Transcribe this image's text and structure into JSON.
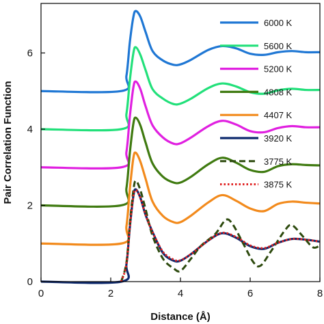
{
  "chart_data": {
    "type": "line",
    "title": "",
    "xlabel": "Distance (Å)",
    "ylabel": "Pair Correlation Function",
    "xlim": [
      0,
      8
    ],
    "ylim": [
      0,
      7.3
    ],
    "x_ticks": [
      0,
      2,
      4,
      6,
      8
    ],
    "y_ticks": [
      0,
      2,
      4,
      6
    ],
    "grid": false,
    "legend_position": "right",
    "series": [
      {
        "name": "6000 K",
        "color": "#1f77d4",
        "style": "solid",
        "offset": 5,
        "points": [
          [
            0,
            0
          ],
          [
            2.3,
            0
          ],
          [
            2.45,
            0.4
          ],
          [
            2.55,
            1.3
          ],
          [
            2.65,
            1.95
          ],
          [
            2.72,
            2.1
          ],
          [
            2.85,
            1.95
          ],
          [
            3.0,
            1.55
          ],
          [
            3.2,
            1.05
          ],
          [
            3.5,
            0.8
          ],
          [
            3.8,
            0.69
          ],
          [
            4.0,
            0.7
          ],
          [
            4.3,
            0.82
          ],
          [
            4.8,
            1.08
          ],
          [
            5.2,
            1.18
          ],
          [
            5.6,
            1.12
          ],
          [
            6.0,
            0.98
          ],
          [
            6.4,
            0.95
          ],
          [
            6.8,
            1.02
          ],
          [
            7.2,
            1.05
          ],
          [
            7.6,
            1.02
          ],
          [
            8.0,
            1.02
          ]
        ]
      },
      {
        "name": "5600 K",
        "color": "#22e07a",
        "style": "solid",
        "offset": 4,
        "points": [
          [
            0,
            0
          ],
          [
            2.3,
            0
          ],
          [
            2.45,
            0.4
          ],
          [
            2.55,
            1.3
          ],
          [
            2.65,
            2.0
          ],
          [
            2.72,
            2.15
          ],
          [
            2.85,
            1.95
          ],
          [
            3.0,
            1.55
          ],
          [
            3.2,
            1.05
          ],
          [
            3.5,
            0.8
          ],
          [
            3.8,
            0.66
          ],
          [
            4.0,
            0.67
          ],
          [
            4.3,
            0.8
          ],
          [
            4.8,
            1.08
          ],
          [
            5.2,
            1.2
          ],
          [
            5.6,
            1.12
          ],
          [
            6.0,
            0.97
          ],
          [
            6.4,
            0.93
          ],
          [
            6.8,
            1.02
          ],
          [
            7.2,
            1.06
          ],
          [
            7.6,
            1.03
          ],
          [
            8.0,
            1.03
          ]
        ]
      },
      {
        "name": "5200 K",
        "color": "#e020e0",
        "style": "solid",
        "offset": 3,
        "points": [
          [
            0,
            0
          ],
          [
            2.3,
            0
          ],
          [
            2.45,
            0.4
          ],
          [
            2.55,
            1.35
          ],
          [
            2.65,
            2.1
          ],
          [
            2.72,
            2.25
          ],
          [
            2.85,
            2.05
          ],
          [
            3.0,
            1.6
          ],
          [
            3.2,
            1.1
          ],
          [
            3.5,
            0.78
          ],
          [
            3.8,
            0.62
          ],
          [
            4.0,
            0.63
          ],
          [
            4.3,
            0.78
          ],
          [
            4.8,
            1.08
          ],
          [
            5.2,
            1.22
          ],
          [
            5.6,
            1.12
          ],
          [
            6.0,
            0.95
          ],
          [
            6.4,
            0.92
          ],
          [
            6.8,
            1.03
          ],
          [
            7.2,
            1.08
          ],
          [
            7.6,
            1.05
          ],
          [
            8.0,
            1.05
          ]
        ]
      },
      {
        "name": "4808 K",
        "color": "#3f7a10",
        "style": "solid",
        "offset": 2,
        "points": [
          [
            0,
            0
          ],
          [
            2.3,
            0
          ],
          [
            2.45,
            0.45
          ],
          [
            2.55,
            1.4
          ],
          [
            2.65,
            2.15
          ],
          [
            2.72,
            2.3
          ],
          [
            2.85,
            2.1
          ],
          [
            3.0,
            1.65
          ],
          [
            3.2,
            1.1
          ],
          [
            3.5,
            0.75
          ],
          [
            3.8,
            0.6
          ],
          [
            4.0,
            0.6
          ],
          [
            4.3,
            0.75
          ],
          [
            4.8,
            1.08
          ],
          [
            5.2,
            1.25
          ],
          [
            5.6,
            1.12
          ],
          [
            6.0,
            0.93
          ],
          [
            6.4,
            0.88
          ],
          [
            6.8,
            1.03
          ],
          [
            7.2,
            1.08
          ],
          [
            7.6,
            1.06
          ],
          [
            8.0,
            1.05
          ]
        ]
      },
      {
        "name": "4407 K",
        "color": "#f28a1c",
        "style": "solid",
        "offset": 1,
        "points": [
          [
            0,
            0
          ],
          [
            2.3,
            0
          ],
          [
            2.45,
            0.45
          ],
          [
            2.55,
            1.45
          ],
          [
            2.65,
            2.25
          ],
          [
            2.72,
            2.38
          ],
          [
            2.85,
            2.15
          ],
          [
            3.0,
            1.7
          ],
          [
            3.2,
            1.1
          ],
          [
            3.5,
            0.72
          ],
          [
            3.8,
            0.56
          ],
          [
            4.0,
            0.56
          ],
          [
            4.3,
            0.73
          ],
          [
            4.8,
            1.08
          ],
          [
            5.2,
            1.27
          ],
          [
            5.6,
            1.12
          ],
          [
            6.0,
            0.92
          ],
          [
            6.4,
            0.85
          ],
          [
            6.8,
            1.04
          ],
          [
            7.2,
            1.1
          ],
          [
            7.6,
            1.07
          ],
          [
            8.0,
            1.05
          ]
        ]
      },
      {
        "name": "3920 K",
        "color": "#0e2a6e",
        "style": "solid",
        "offset": 0,
        "points": [
          [
            0,
            0
          ],
          [
            2.3,
            0
          ],
          [
            2.45,
            0.45
          ],
          [
            2.55,
            1.45
          ],
          [
            2.65,
            2.25
          ],
          [
            2.72,
            2.42
          ],
          [
            2.85,
            2.2
          ],
          [
            3.0,
            1.75
          ],
          [
            3.2,
            1.3
          ],
          [
            3.5,
            0.75
          ],
          [
            3.8,
            0.55
          ],
          [
            4.0,
            0.55
          ],
          [
            4.3,
            0.72
          ],
          [
            4.8,
            1.08
          ],
          [
            5.2,
            1.27
          ],
          [
            5.6,
            1.15
          ],
          [
            6.0,
            0.93
          ],
          [
            6.4,
            0.86
          ],
          [
            6.8,
            1.02
          ],
          [
            7.2,
            1.12
          ],
          [
            7.6,
            1.1
          ],
          [
            8.0,
            1.05
          ]
        ]
      },
      {
        "name": "3775 K",
        "color": "#2d4a0e",
        "style": "dash",
        "offset": 0,
        "points": [
          [
            2.3,
            0
          ],
          [
            2.45,
            0.5
          ],
          [
            2.55,
            1.55
          ],
          [
            2.65,
            2.4
          ],
          [
            2.72,
            2.65
          ],
          [
            2.85,
            2.4
          ],
          [
            3.0,
            1.9
          ],
          [
            3.2,
            1.2
          ],
          [
            3.5,
            0.6
          ],
          [
            3.8,
            0.35
          ],
          [
            4.0,
            0.28
          ],
          [
            4.3,
            0.6
          ],
          [
            4.6,
            0.95
          ],
          [
            5.0,
            1.25
          ],
          [
            5.3,
            1.62
          ],
          [
            5.5,
            1.5
          ],
          [
            5.8,
            1.0
          ],
          [
            6.1,
            0.5
          ],
          [
            6.3,
            0.42
          ],
          [
            6.6,
            0.8
          ],
          [
            7.0,
            1.35
          ],
          [
            7.2,
            1.48
          ],
          [
            7.5,
            1.2
          ],
          [
            7.8,
            0.9
          ],
          [
            8.0,
            0.95
          ]
        ]
      },
      {
        "name": "3875 K",
        "color": "#e02020",
        "style": "dot",
        "offset": 0,
        "points": [
          [
            2.3,
            0
          ],
          [
            2.45,
            0.45
          ],
          [
            2.55,
            1.45
          ],
          [
            2.65,
            2.25
          ],
          [
            2.72,
            2.4
          ],
          [
            2.85,
            2.2
          ],
          [
            3.0,
            1.75
          ],
          [
            3.2,
            1.3
          ],
          [
            3.5,
            0.78
          ],
          [
            3.8,
            0.58
          ],
          [
            4.0,
            0.56
          ],
          [
            4.3,
            0.72
          ],
          [
            4.8,
            1.08
          ],
          [
            5.2,
            1.28
          ],
          [
            5.6,
            1.17
          ],
          [
            6.0,
            0.95
          ],
          [
            6.4,
            0.88
          ],
          [
            6.8,
            1.02
          ],
          [
            7.2,
            1.12
          ],
          [
            7.6,
            1.1
          ],
          [
            8.0,
            1.05
          ]
        ]
      }
    ]
  }
}
